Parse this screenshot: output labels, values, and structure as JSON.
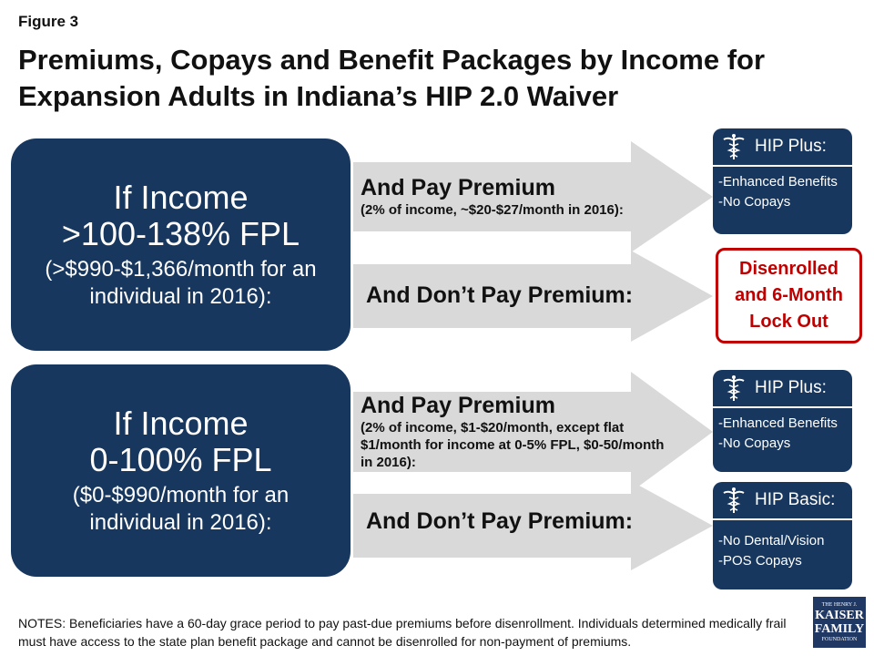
{
  "figure_label": "Figure 3",
  "title": "Premiums, Copays and Benefit Packages by Income for Expansion Adults in Indiana’s HIP 2.0 Waiver",
  "groups": [
    {
      "income_box": {
        "line1": "If Income",
        "line2": ">100-138% FPL",
        "detail": "(>$990-$1,366/month for an individual in 2016):"
      },
      "pay_arrow": {
        "heading": "And Pay Premium",
        "detail": "(2% of income, ~$20-$27/month in 2016):"
      },
      "no_pay_arrow": {
        "heading": "And Don’t Pay Premium:"
      },
      "pay_outcome": {
        "name": "HIP Plus:",
        "items": [
          "-Enhanced Benefits",
          "-No Copays"
        ]
      },
      "no_pay_outcome": {
        "text": "Disenrolled and 6-Month Lock Out"
      }
    },
    {
      "income_box": {
        "line1": "If Income",
        "line2": "0-100% FPL",
        "detail": "($0-$990/month for an individual in 2016):"
      },
      "pay_arrow": {
        "heading": "And Pay Premium",
        "detail": "(2% of income, $1-$20/month, except flat $1/month for income at 0-5% FPL, $0-50/month in 2016):"
      },
      "no_pay_arrow": {
        "heading": "And Don’t Pay Premium:"
      },
      "pay_outcome": {
        "name": "HIP Plus:",
        "items": [
          "-Enhanced Benefits",
          "-No Copays"
        ]
      },
      "no_pay_outcome": {
        "name": "HIP Basic:",
        "items": [
          "-No Dental/Vision",
          "-POS Copays"
        ]
      }
    }
  ],
  "notes": "NOTES:  Beneficiaries have a 60-day grace period to pay past-due premiums before disenrollment.  Individuals determined medically frail must have access to the state plan benefit package and cannot be disenrolled for non-payment of premiums.",
  "logo": {
    "line1": "THE HENRY J.",
    "line2": "KAISER",
    "line3": "FAMILY",
    "line4": "FOUNDATION"
  },
  "icons": {
    "plan": "caduceus-icon"
  },
  "colors": {
    "navy": "#17375e",
    "arrow": "#d9d9d9",
    "red": "#c00000"
  }
}
